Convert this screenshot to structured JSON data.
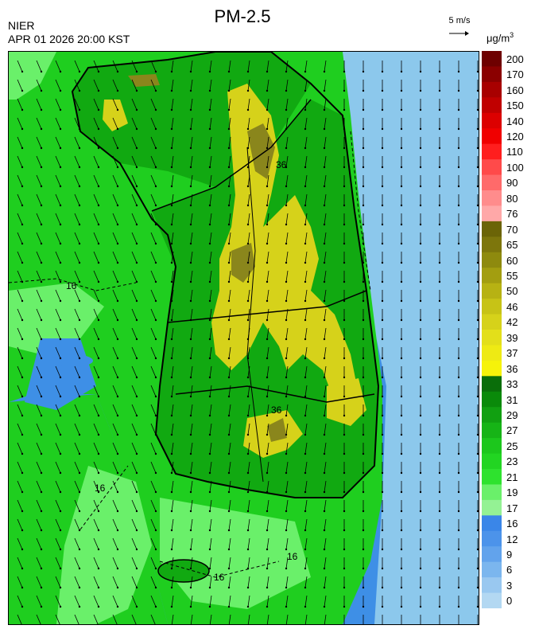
{
  "header": {
    "title": "PM-2.5",
    "agency": "NIER",
    "timestamp": "APR 01 2026 20:00 KST",
    "vector_key": "5 m/s",
    "unit_main": "μg/m",
    "unit_sup": "3"
  },
  "map": {
    "contour_labels": [
      "16",
      "16",
      "16",
      "16",
      "36",
      "36"
    ],
    "wind_direction": "mostly southward",
    "colors": {
      "sea_light": "#8cc8ec",
      "sea_blue": "#3e8fe6",
      "green_light": "#6af06a",
      "green": "#1fce1f",
      "green_mid": "#11a911",
      "green_dark": "#0a8a0a",
      "yellow": "#d6d21a",
      "olive": "#8a861c"
    }
  },
  "legend": {
    "levels": [
      {
        "label": "200",
        "color": "#6e0000"
      },
      {
        "label": "170",
        "color": "#8b0000"
      },
      {
        "label": "160",
        "color": "#a80000"
      },
      {
        "label": "150",
        "color": "#c00000"
      },
      {
        "label": "140",
        "color": "#dc0000"
      },
      {
        "label": "120",
        "color": "#f00000"
      },
      {
        "label": "110",
        "color": "#ff1e1e"
      },
      {
        "label": "100",
        "color": "#ff4a4a"
      },
      {
        "label": "90",
        "color": "#ff6a6a"
      },
      {
        "label": "80",
        "color": "#ff8c8c"
      },
      {
        "label": "76",
        "color": "#ffa8a8"
      },
      {
        "label": "70",
        "color": "#6b6407"
      },
      {
        "label": "65",
        "color": "#7d760c"
      },
      {
        "label": "60",
        "color": "#8e8a0e"
      },
      {
        "label": "55",
        "color": "#a39e10"
      },
      {
        "label": "50",
        "color": "#b7b213"
      },
      {
        "label": "46",
        "color": "#c7c316"
      },
      {
        "label": "42",
        "color": "#d6d21a"
      },
      {
        "label": "39",
        "color": "#e3df1a"
      },
      {
        "label": "37",
        "color": "#eeea14"
      },
      {
        "label": "36",
        "color": "#f6f30a"
      },
      {
        "label": "33",
        "color": "#0a6e0a"
      },
      {
        "label": "31",
        "color": "#0a8a0a"
      },
      {
        "label": "29",
        "color": "#11a011"
      },
      {
        "label": "27",
        "color": "#16b416"
      },
      {
        "label": "25",
        "color": "#1cc71c"
      },
      {
        "label": "23",
        "color": "#22d522"
      },
      {
        "label": "21",
        "color": "#2ee22e"
      },
      {
        "label": "19",
        "color": "#6af06a"
      },
      {
        "label": "17",
        "color": "#94f294"
      },
      {
        "label": "16",
        "color": "#3a86e8"
      },
      {
        "label": "12",
        "color": "#4c93ea"
      },
      {
        "label": "9",
        "color": "#62a3ec"
      },
      {
        "label": "6",
        "color": "#7bb6ee"
      },
      {
        "label": "3",
        "color": "#99c8f0"
      },
      {
        "label": "0",
        "color": "#b3d8f2"
      }
    ]
  }
}
